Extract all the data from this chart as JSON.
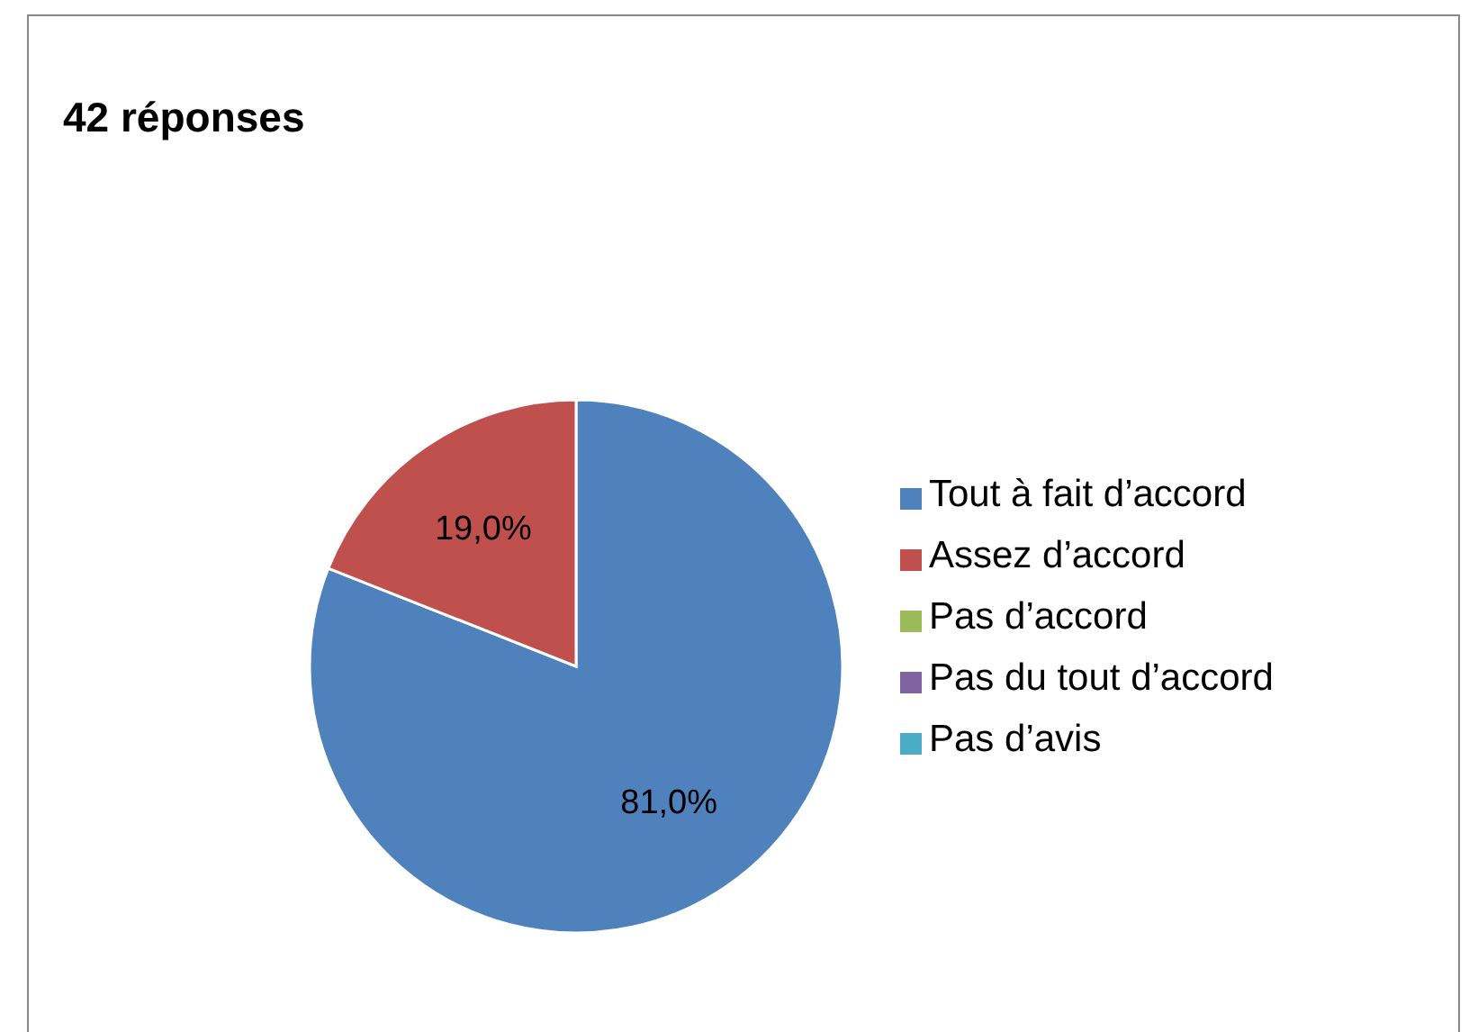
{
  "chart_data": {
    "type": "pie",
    "title": "42 réponses",
    "categories": [
      "Tout à fait d’accord",
      "Assez d’accord",
      "Pas d’accord",
      "Pas du tout d’accord",
      "Pas d’avis"
    ],
    "values": [
      81.0,
      19.0,
      0,
      0,
      0
    ],
    "colors": [
      "#4f81bd",
      "#c0504d",
      "#9bbb59",
      "#8064a2",
      "#4bacc6"
    ],
    "value_labels": [
      "81,0%",
      "19,0%",
      null,
      null,
      null
    ],
    "legend": "right"
  }
}
